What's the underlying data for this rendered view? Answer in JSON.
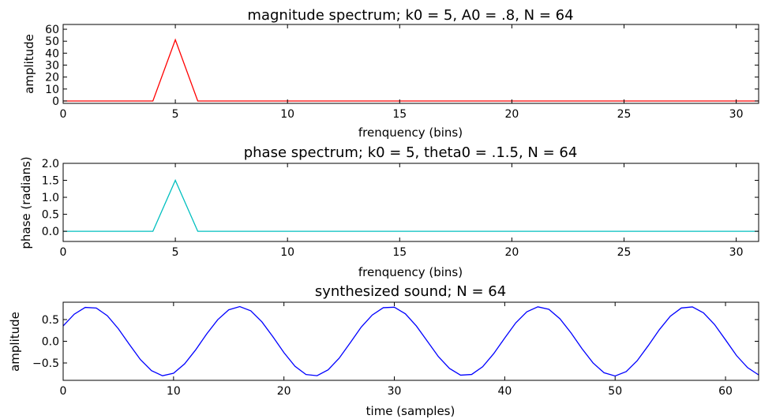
{
  "chart_data": [
    {
      "type": "line",
      "title": "magnitude spectrum; k0 = 5, A0 = .8, N = 64",
      "xlabel": "frenquency (bins)",
      "ylabel": "amplitude",
      "xlim": [
        0,
        31
      ],
      "ylim": [
        -2,
        64
      ],
      "xticks": [
        0,
        5,
        10,
        15,
        20,
        25,
        30
      ],
      "yticks": [
        0,
        10,
        20,
        30,
        40,
        50,
        60
      ],
      "ytick_labels": [
        "0",
        "10",
        "20",
        "30",
        "40",
        "50",
        "60"
      ],
      "grid": false,
      "series": [
        {
          "color": "#ff0000",
          "x": [
            0,
            1,
            2,
            3,
            4,
            5,
            6,
            7,
            8,
            9,
            10,
            11,
            12,
            13,
            14,
            15,
            16,
            17,
            18,
            19,
            20,
            21,
            22,
            23,
            24,
            25,
            26,
            27,
            28,
            29,
            30,
            31
          ],
          "y": [
            0,
            0,
            0,
            0,
            0,
            51.2,
            0,
            0,
            0,
            0,
            0,
            0,
            0,
            0,
            0,
            0,
            0,
            0,
            0,
            0,
            0,
            0,
            0,
            0,
            0,
            0,
            0,
            0,
            0,
            0,
            0,
            0
          ]
        }
      ]
    },
    {
      "type": "line",
      "title": "phase spectrum; k0 = 5, theta0 = .1.5, N = 64",
      "xlabel": "frenquency (bins)",
      "ylabel": "phase (radians)",
      "xlim": [
        0,
        31
      ],
      "ylim": [
        -0.3,
        2.0
      ],
      "xticks": [
        0,
        5,
        10,
        15,
        20,
        25,
        30
      ],
      "yticks": [
        0,
        0.5,
        1.0,
        1.5,
        2.0
      ],
      "ytick_labels": [
        "0.0",
        "0.5",
        "1.0",
        "1.5",
        "2.0"
      ],
      "grid": false,
      "series": [
        {
          "color": "#00bfbf",
          "x": [
            0,
            1,
            2,
            3,
            4,
            5,
            6,
            7,
            8,
            9,
            10,
            11,
            12,
            13,
            14,
            15,
            16,
            17,
            18,
            19,
            20,
            21,
            22,
            23,
            24,
            25,
            26,
            27,
            28,
            29,
            30,
            31
          ],
          "y": [
            0,
            0,
            0,
            0,
            0,
            1.5,
            0,
            0,
            0,
            0,
            0,
            0,
            0,
            0,
            0,
            0,
            0,
            0,
            0,
            0,
            0,
            0,
            0,
            0,
            0,
            0,
            0,
            0,
            0,
            0,
            0,
            0
          ]
        }
      ]
    },
    {
      "type": "line",
      "title": "synthesized sound; N = 64",
      "xlabel": "time (samples)",
      "ylabel": "amplitude",
      "xlim": [
        0,
        63
      ],
      "ylim": [
        -0.9,
        0.9
      ],
      "xticks": [
        0,
        10,
        20,
        30,
        40,
        50,
        60
      ],
      "yticks": [
        -0.5,
        0,
        0.5
      ],
      "ytick_labels": [
        "−0.5",
        "0.0",
        "0.5"
      ],
      "grid": false,
      "series": [
        {
          "color": "#0000ff",
          "x": [
            0,
            1,
            2,
            3,
            4,
            5,
            6,
            7,
            8,
            9,
            10,
            11,
            12,
            13,
            14,
            15,
            16,
            17,
            18,
            19,
            20,
            21,
            22,
            23,
            24,
            25,
            26,
            27,
            28,
            29,
            30,
            31,
            32,
            33,
            34,
            35,
            36,
            37,
            38,
            39,
            40,
            41,
            42,
            43,
            44,
            45,
            46,
            47,
            48,
            49,
            50,
            51,
            52,
            53,
            54,
            55,
            56,
            57,
            58,
            59,
            60,
            61,
            62,
            63
          ],
          "y": [
            0.354,
            0.623,
            0.781,
            0.766,
            0.589,
            0.289,
            -0.072,
            -0.422,
            -0.676,
            -0.794,
            -0.737,
            -0.521,
            -0.199,
            0.168,
            0.497,
            0.725,
            0.799,
            0.701,
            0.449,
            0.104,
            -0.262,
            -0.576,
            -0.766,
            -0.793,
            -0.658,
            -0.391,
            -0.036,
            0.327,
            0.605,
            0.774,
            0.785,
            0.634,
            0.351,
            -0.003,
            -0.357,
            -0.627,
            -0.781,
            -0.765,
            -0.587,
            -0.286,
            0.075,
            0.425,
            0.678,
            0.794,
            0.736,
            0.519,
            0.196,
            -0.171,
            -0.499,
            -0.726,
            -0.799,
            -0.7,
            -0.447,
            -0.101,
            0.265,
            0.578,
            0.767,
            0.792,
            0.656,
            0.388,
            0.033,
            -0.33,
            -0.607,
            -0.775
          ]
        }
      ]
    }
  ]
}
